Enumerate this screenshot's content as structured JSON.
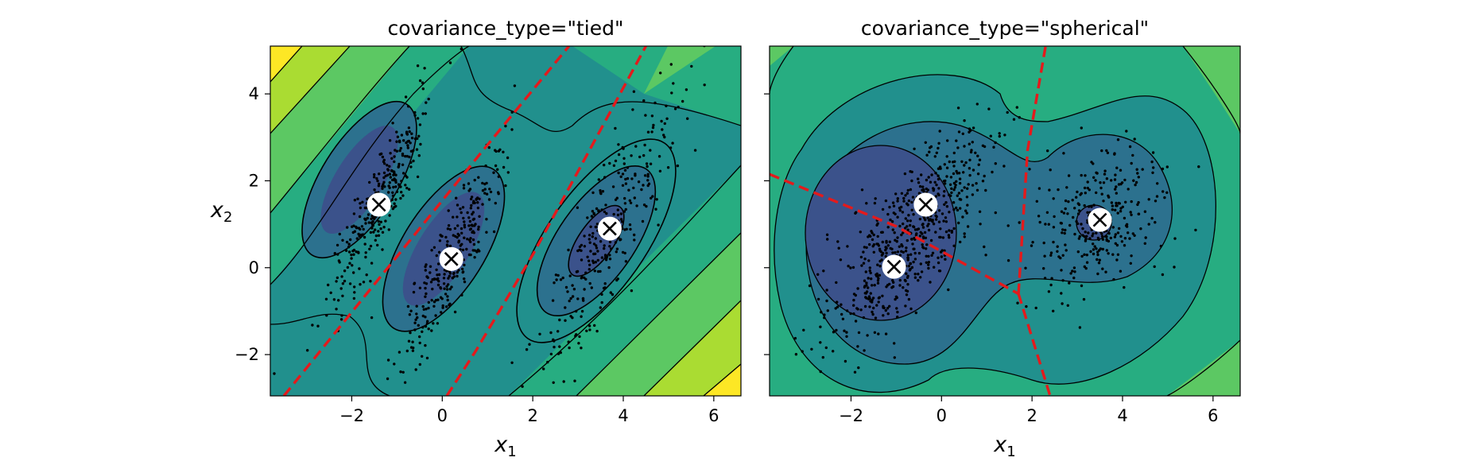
{
  "chart_data": [
    {
      "type": "contour",
      "title": "covariance_type=\"tied\"",
      "xlabel": "x",
      "xlabel_sub": "1",
      "ylabel": "x",
      "ylabel_sub": "2",
      "xlim": [
        -3.8,
        6.6
      ],
      "ylim": [
        -2.95,
        5.1
      ],
      "xticks": [
        -2,
        0,
        2,
        4,
        6
      ],
      "yticks": [
        -2,
        0,
        2,
        4
      ],
      "xtick_labels": [
        "−2",
        "0",
        "2",
        "4",
        "6"
      ],
      "ytick_labels": [
        "−2",
        "0",
        "2",
        "4"
      ],
      "centroids": [
        {
          "x": -1.4,
          "y": 1.45
        },
        {
          "x": 0.2,
          "y": 0.2
        },
        {
          "x": 3.7,
          "y": 0.9
        }
      ],
      "decision_boundaries": [
        [
          [
            -3.5,
            -2.95
          ],
          [
            0.9,
            2.7
          ],
          [
            2.8,
            5.1
          ]
        ],
        [
          [
            0.1,
            -2.95
          ],
          [
            0.75,
            -1.9
          ],
          [
            2.0,
            0.3
          ],
          [
            4.5,
            5.1
          ]
        ]
      ]
    },
    {
      "type": "contour",
      "title": "covariance_type=\"spherical\"",
      "xlabel": "x",
      "xlabel_sub": "1",
      "xlim": [
        -3.8,
        6.6
      ],
      "ylim": [
        -2.95,
        5.1
      ],
      "xticks": [
        -2,
        0,
        2,
        4,
        6
      ],
      "yticks": [
        -2,
        0,
        2,
        4
      ],
      "xtick_labels": [
        "−2",
        "0",
        "2",
        "4",
        "6"
      ],
      "ytick_labels": [
        "−2",
        "0",
        "2",
        "4"
      ],
      "centroids": [
        {
          "x": -0.35,
          "y": 1.45
        },
        {
          "x": -1.05,
          "y": 0.02
        },
        {
          "x": 3.5,
          "y": 1.1
        }
      ],
      "decision_boundaries": [
        [
          [
            -3.8,
            2.15
          ],
          [
            -1.0,
            0.95
          ],
          [
            1.7,
            -0.6
          ]
        ],
        [
          [
            1.7,
            -0.6
          ],
          [
            1.9,
            2.7
          ],
          [
            2.3,
            5.1
          ]
        ],
        [
          [
            1.7,
            -0.6
          ],
          [
            2.4,
            -2.95
          ]
        ]
      ]
    }
  ],
  "colors": {
    "boundary": "#e41a1c",
    "contour_line": "#000000",
    "levels": [
      "#3b528b",
      "#2c718e",
      "#21908d",
      "#27ad81",
      "#5cc863",
      "#aadc32",
      "#fde725"
    ]
  }
}
